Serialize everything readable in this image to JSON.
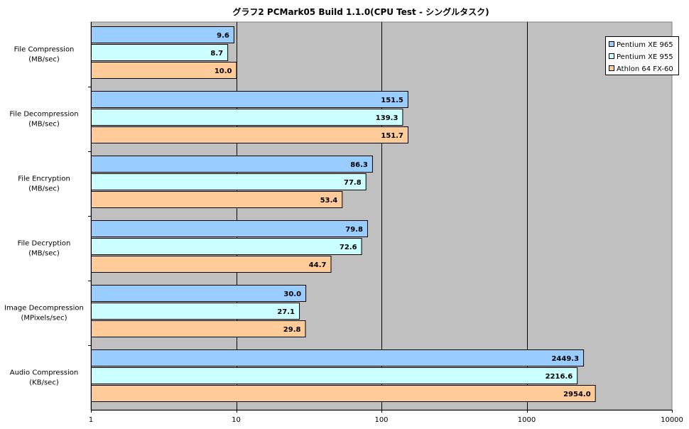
{
  "chart_data": {
    "type": "bar",
    "orientation": "horizontal",
    "title": "グラフ2  PCMark05  Build 1.1.0(CPU Test - シングルタスク)",
    "x_scale": "log",
    "xlim": [
      1,
      10000
    ],
    "x_ticks": [
      "1",
      "10",
      "100",
      "1000",
      "10000"
    ],
    "x_tick_values": [
      1,
      10,
      100,
      1000,
      10000
    ],
    "grid": "vertical major gridlines",
    "legend_position": "top-right",
    "plot_background": "#c0c0c0",
    "categories": [
      [
        "File Compression",
        "(MB/sec)"
      ],
      [
        "File Decompression",
        "(MB/sec)"
      ],
      [
        "File Encryption",
        "(MB/sec)"
      ],
      [
        "File Decryption",
        "(MB/sec)"
      ],
      [
        "Image Decompression",
        "(MPixels/sec)"
      ],
      [
        "Audio Compression",
        "(KB/sec)"
      ]
    ],
    "series": [
      {
        "name": "Pentium XE 965",
        "color": "#99ccff",
        "values": [
          9.6,
          151.5,
          86.3,
          79.8,
          30.0,
          2449.3
        ],
        "labels": [
          "9.6",
          "151.5",
          "86.3",
          "79.8",
          "30.0",
          "2449.3"
        ]
      },
      {
        "name": "Pentium XE 955",
        "color": "#ccffff",
        "values": [
          8.7,
          139.3,
          77.8,
          72.6,
          27.1,
          2216.6
        ],
        "labels": [
          "8.7",
          "139.3",
          "77.8",
          "72.6",
          "27.1",
          "2216.6"
        ]
      },
      {
        "name": "Athlon 64 FX-60",
        "color": "#ffcc99",
        "values": [
          10.0,
          151.7,
          53.4,
          44.7,
          29.8,
          2954.0
        ],
        "labels": [
          "10.0",
          "151.7",
          "53.4",
          "44.7",
          "29.8",
          "2954.0"
        ]
      }
    ]
  }
}
